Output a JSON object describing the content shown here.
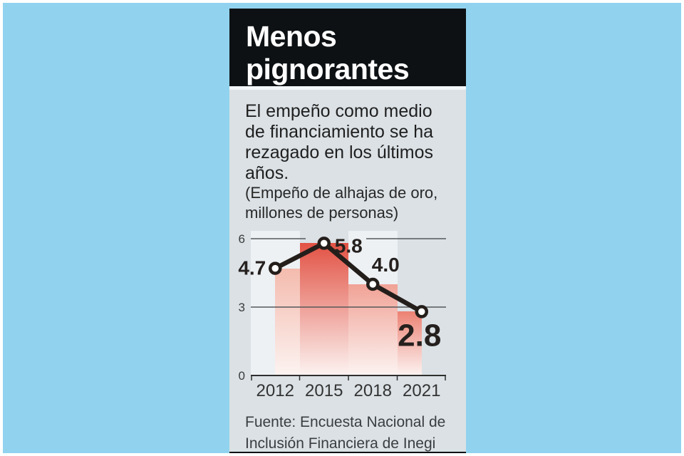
{
  "page": {
    "background_color": "#91d3ee",
    "frame_color": "#ffffff"
  },
  "header": {
    "title_lines": [
      "Menos",
      "pignorantes"
    ],
    "bg_color": "#0d1114",
    "text_color": "#ffffff"
  },
  "intro": {
    "lines": [
      "El empeño como medio",
      "de financiamiento se ha",
      "rezagado en los últimos",
      "años."
    ]
  },
  "note": {
    "lines": [
      "(Empeño de alhajas de oro,",
      "millones de personas)"
    ]
  },
  "chart_data": {
    "type": "line",
    "title": "Empeño de alhajas de oro, millones de personas",
    "categories": [
      "2012",
      "2015",
      "2018",
      "2021"
    ],
    "values": [
      4.7,
      5.8,
      4.0,
      2.8
    ],
    "point_labels": [
      "4.7",
      "5.8",
      "4.0",
      "2.8"
    ],
    "yticks": [
      6,
      3,
      0
    ],
    "ylim": [
      0,
      6
    ],
    "xlabel": "",
    "ylabel": "",
    "grid": "horizontal gridlines at 3 and 6, baseline axis at 0 with ticks",
    "legend_position": "none",
    "marker_style": "open-circle",
    "line_color": "#241e1b",
    "marker_fill": "#ffffff",
    "bar_colors": [
      "#f4bbae",
      "#e25244",
      "#f1a296",
      "#ec8173"
    ],
    "bar_fade_color": "#fcf3f1",
    "stripe_cells": [
      0,
      2
    ],
    "stripe_color": "#edf1f4",
    "gridline_color": "#55585a",
    "axis_color": "#2f2f2f",
    "tick_label_color": "#3a3a3a",
    "value_label_color": "#25201e"
  },
  "source": {
    "lines": [
      "Fuente: Encuesta Nacional de",
      "Inclusión Financiera de Inegi"
    ]
  }
}
